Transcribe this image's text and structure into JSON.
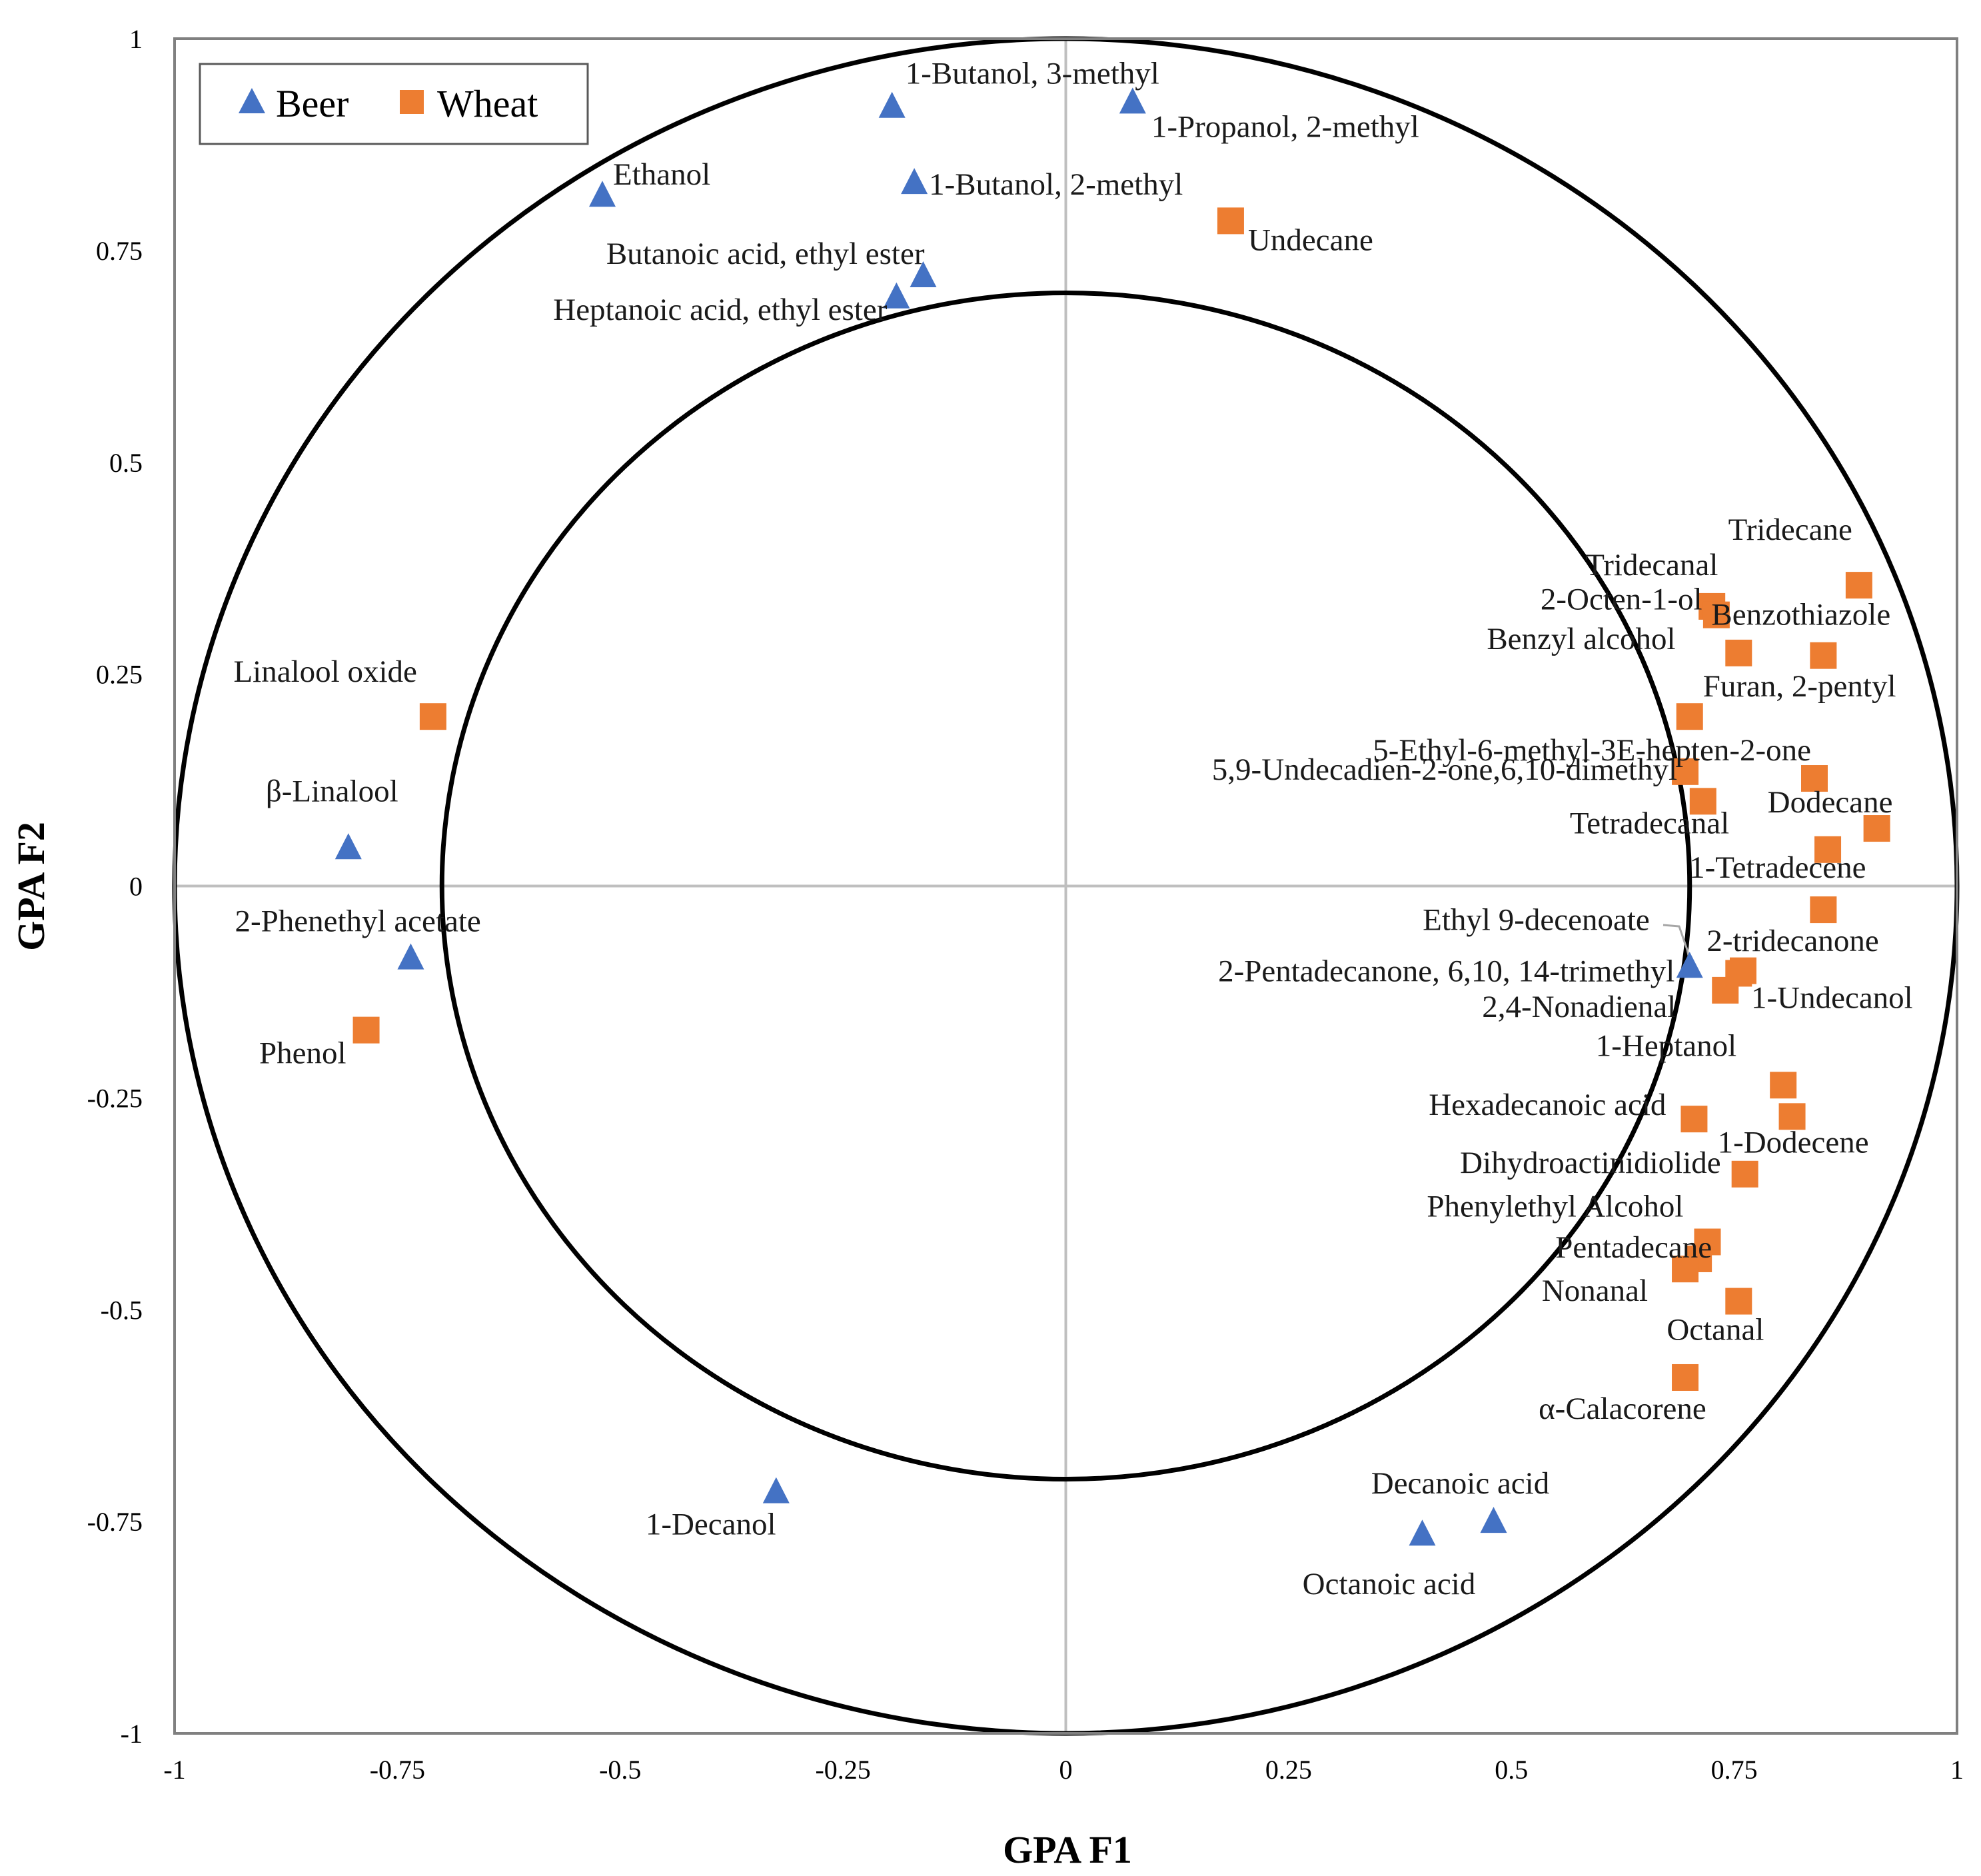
{
  "chart_data": {
    "type": "scatter",
    "title": "",
    "xlabel": "GPA F1",
    "ylabel": "GPA F2",
    "xlim": [
      -1,
      1
    ],
    "ylim": [
      -1,
      1
    ],
    "xticks": [
      "-1",
      "-0.75",
      "-0.5",
      "-0.25",
      "0",
      "0.25",
      "0.5",
      "0.75",
      "1"
    ],
    "yticks": [
      "1",
      "0.75",
      "0.5",
      "0.25",
      "0",
      "-0.25",
      "-0.5",
      "-0.75",
      "-1"
    ],
    "circles": [
      {
        "name": "outer-circle",
        "radius": 1.0
      },
      {
        "name": "inner-circle",
        "radius": 0.7
      }
    ],
    "legend": {
      "position": "top-left",
      "entries": [
        "Beer",
        "Wheat"
      ]
    },
    "colors": {
      "Beer": "#4472c4",
      "Wheat": "#ed7d31"
    },
    "series": [
      {
        "name": "Beer",
        "marker": "triangle",
        "points": [
          {
            "label": "1-Butanol, 3-methyl",
            "x": -0.195,
            "y": 0.92
          },
          {
            "label": "1-Propanol, 2-methyl",
            "x": 0.075,
            "y": 0.925
          },
          {
            "label": "Ethanol",
            "x": -0.52,
            "y": 0.815
          },
          {
            "label": "1-Butanol, 2-methyl",
            "x": -0.17,
            "y": 0.83
          },
          {
            "label": "Butanoic acid, ethyl ester",
            "x": -0.16,
            "y": 0.72
          },
          {
            "label": "Heptanoic acid, ethyl ester",
            "x": -0.19,
            "y": 0.695
          },
          {
            "label": "β-Linalool",
            "x": -0.805,
            "y": 0.045
          },
          {
            "label": "2-Phenethyl acetate",
            "x": -0.735,
            "y": -0.085
          },
          {
            "label": "1-Decanol",
            "x": -0.325,
            "y": -0.715
          },
          {
            "label": "Decanoic acid",
            "x": 0.48,
            "y": -0.75
          },
          {
            "label": "Octanoic acid",
            "x": 0.4,
            "y": -0.765
          },
          {
            "label": "Ethyl 9-decenoate",
            "x": 0.7,
            "y": -0.095
          }
        ]
      },
      {
        "name": "Wheat",
        "marker": "square",
        "points": [
          {
            "label": "Undecane",
            "x": 0.185,
            "y": 0.785
          },
          {
            "label": "Linalool oxide",
            "x": -0.71,
            "y": 0.2
          },
          {
            "label": "Phenol",
            "x": -0.785,
            "y": -0.17
          },
          {
            "label": "Tridecane",
            "x": 0.89,
            "y": 0.355
          },
          {
            "label": "Tridecanal",
            "x": 0.725,
            "y": 0.33
          },
          {
            "label": "2-Octen-1-ol",
            "x": 0.73,
            "y": 0.32
          },
          {
            "label": "Benzothiazole",
            "x": 0.85,
            "y": 0.272
          },
          {
            "label": "Benzyl alcohol",
            "x": 0.755,
            "y": 0.275
          },
          {
            "label": "Furan, 2-pentyl",
            "x": 0.7,
            "y": 0.2
          },
          {
            "label": "5-Ethyl-6-methyl-3E-hepten-2-one",
            "x": 0.84,
            "y": 0.127
          },
          {
            "label": "5,9-Undecadien-2-one,6,10-dimethyl",
            "x": 0.695,
            "y": 0.135
          },
          {
            "label": "Tetradecanal",
            "x": 0.715,
            "y": 0.1
          },
          {
            "label": "Dodecane",
            "x": 0.91,
            "y": 0.068
          },
          {
            "label": "1-Tetradecene",
            "x": 0.855,
            "y": 0.043
          },
          {
            "label": "2-tridecanone",
            "x": 0.85,
            "y": -0.028
          },
          {
            "label": "2-Pentadecanone, 6,10, 14-trimethyl",
            "x": 0.755,
            "y": -0.103
          },
          {
            "label": "2,4-Nonadienal",
            "x": 0.74,
            "y": -0.123
          },
          {
            "label": "1-Undecanol",
            "x": 0.76,
            "y": -0.1
          },
          {
            "label": "1-Heptanol",
            "x": 0.805,
            "y": -0.235
          },
          {
            "label": "1-Dodecene",
            "x": 0.815,
            "y": -0.272
          },
          {
            "label": "Hexadecanoic acid",
            "x": 0.705,
            "y": -0.275
          },
          {
            "label": "Dihydroactinidiolide",
            "x": 0.762,
            "y": -0.34
          },
          {
            "label": "Phenylethyl Alcohol",
            "x": 0.72,
            "y": -0.42
          },
          {
            "label": "Pentadecane",
            "x": 0.71,
            "y": -0.44
          },
          {
            "label": "Nonanal",
            "x": 0.695,
            "y": -0.452
          },
          {
            "label": "Octanal",
            "x": 0.755,
            "y": -0.49
          },
          {
            "label": "α-Calacorene",
            "x": 0.695,
            "y": -0.58
          }
        ]
      }
    ]
  }
}
